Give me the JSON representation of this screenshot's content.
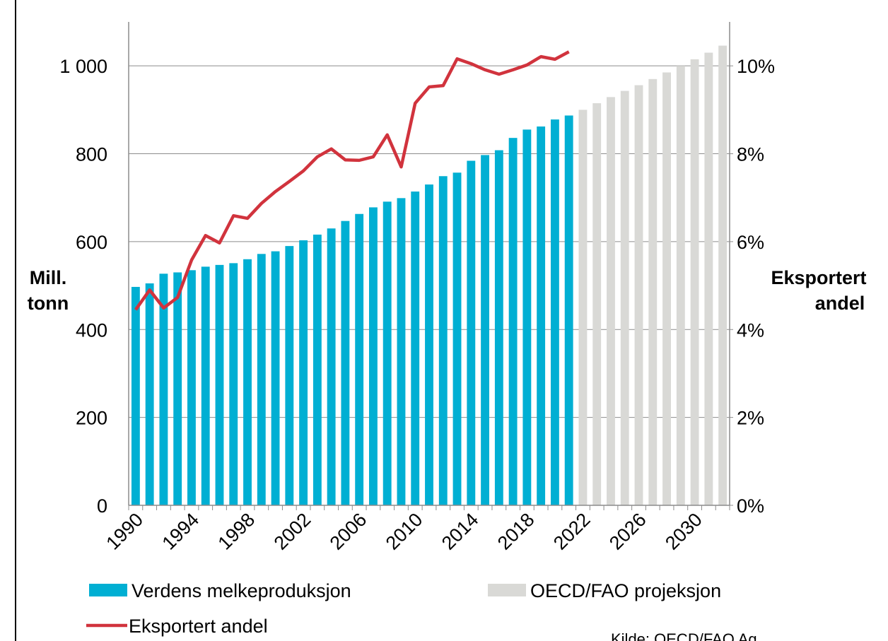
{
  "chart_data": {
    "type": "bar",
    "categories": [
      "1990",
      null,
      null,
      null,
      "1994",
      null,
      null,
      null,
      "1998",
      null,
      null,
      null,
      "2002",
      null,
      null,
      null,
      "2006",
      null,
      null,
      null,
      "2010",
      null,
      null,
      null,
      "2014",
      null,
      null,
      null,
      "2018",
      null,
      null,
      null,
      "2022",
      null,
      null,
      null,
      "2026",
      null,
      null,
      null,
      "2030",
      null,
      null
    ],
    "series": [
      {
        "name": "Verdens melkeproduksjon",
        "color": "#00afd3",
        "type": "bar",
        "values": [
          497,
          505,
          527,
          530,
          535,
          543,
          547,
          551,
          560,
          572,
          578,
          590,
          603,
          616,
          630,
          647,
          663,
          678,
          691,
          699,
          714,
          730,
          749,
          757,
          784,
          797,
          808,
          836,
          855,
          862,
          878,
          887,
          null,
          null,
          null,
          null,
          null,
          null,
          null,
          null,
          null,
          null,
          null
        ]
      },
      {
        "name": "OECD/FAO projeksjon",
        "color": "#d9d9d6",
        "type": "bar",
        "values": [
          null,
          null,
          null,
          null,
          null,
          null,
          null,
          null,
          null,
          null,
          null,
          null,
          null,
          null,
          null,
          null,
          null,
          null,
          null,
          null,
          null,
          null,
          null,
          null,
          null,
          null,
          null,
          null,
          null,
          null,
          null,
          null,
          900,
          915,
          929,
          943,
          956,
          970,
          985,
          1000,
          1015,
          1030,
          1046
        ]
      },
      {
        "name": "Eksportert andel",
        "color": "#d1333d",
        "type": "line",
        "axis": "y2",
        "values": [
          4.45,
          4.9,
          4.49,
          4.73,
          5.58,
          6.14,
          5.97,
          6.59,
          6.53,
          6.87,
          7.14,
          7.37,
          7.61,
          7.93,
          8.11,
          7.86,
          7.85,
          7.93,
          8.43,
          7.7,
          9.15,
          9.52,
          9.55,
          10.16,
          10.05,
          9.91,
          9.81,
          9.91,
          10.02,
          10.21,
          10.15,
          10.32,
          null,
          null,
          null,
          null,
          null,
          null,
          null,
          null,
          null,
          null,
          null
        ]
      }
    ],
    "ylim": [
      0,
      1100
    ],
    "yticks": [
      0,
      200,
      400,
      600,
      800,
      {
        "value": 1000,
        "label": "1 000"
      }
    ],
    "y2lim": [
      0,
      11
    ],
    "y2ticks": [
      {
        "value": 0,
        "label": "0%"
      },
      {
        "value": 2,
        "label": "2%"
      },
      {
        "value": 4,
        "label": "4%"
      },
      {
        "value": 6,
        "label": "6%"
      },
      {
        "value": 8,
        "label": "8%"
      },
      {
        "value": 10,
        "label": "10%"
      }
    ],
    "y_label": [
      "Mill.",
      "tonn"
    ],
    "y2_label": [
      "Eksportert",
      "andel"
    ],
    "source": "Kilde: OECD/FAO Ag",
    "grid": true
  }
}
